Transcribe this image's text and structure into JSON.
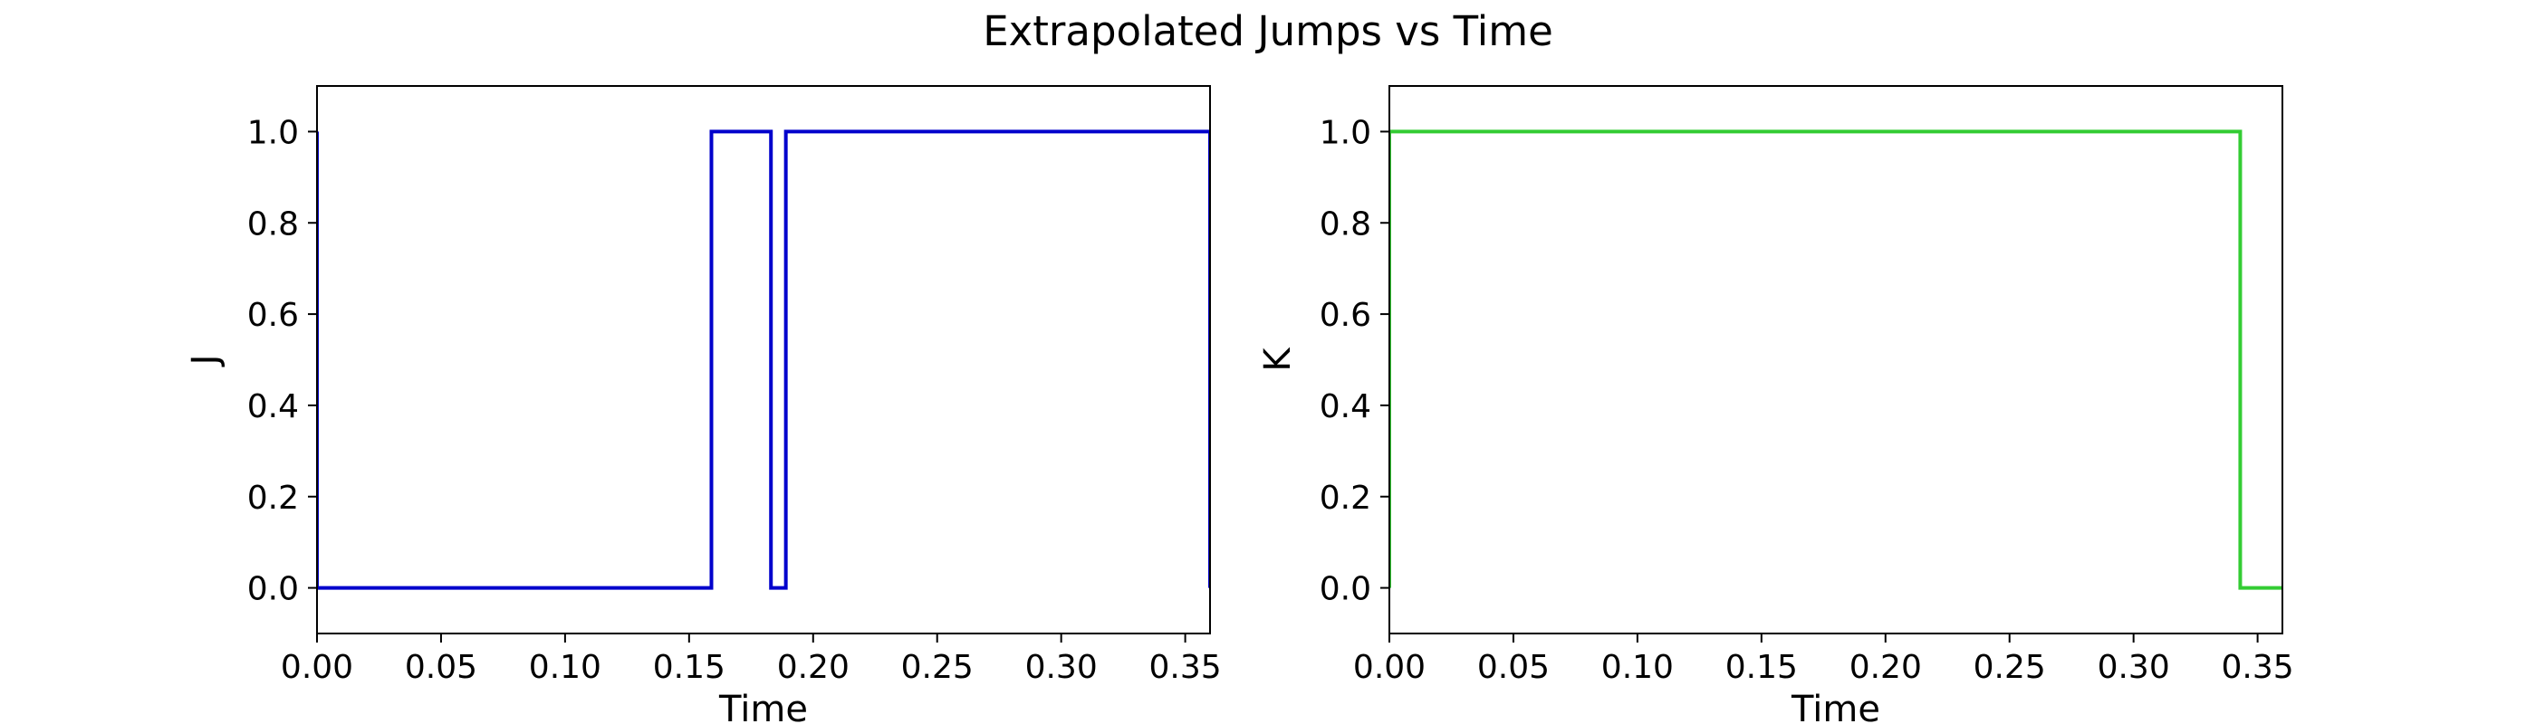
{
  "figure": {
    "suptitle": "Extrapolated Jumps vs Time"
  },
  "chart_data": [
    {
      "type": "line",
      "step": "post",
      "xlabel": "Time",
      "ylabel": "J",
      "xlim": [
        0.0,
        0.36
      ],
      "ylim": [
        -0.1,
        1.1
      ],
      "xticks": [
        "0.00",
        "0.05",
        "0.10",
        "0.15",
        "0.20",
        "0.25",
        "0.30",
        "0.35"
      ],
      "yticks": [
        "0.0",
        "0.2",
        "0.4",
        "0.6",
        "0.8",
        "1.0"
      ],
      "grid": false,
      "series": [
        {
          "color": "#0000cc",
          "x": [
            0.0,
            0.0,
            0.159,
            0.183,
            0.189,
            0.36,
            0.36
          ],
          "y": [
            1.0,
            0.0,
            1.0,
            0.0,
            1.0,
            1.0,
            0.0
          ]
        }
      ]
    },
    {
      "type": "line",
      "step": "post",
      "xlabel": "Time",
      "ylabel": "K",
      "xlim": [
        0.0,
        0.36
      ],
      "ylim": [
        -0.1,
        1.1
      ],
      "xticks": [
        "0.00",
        "0.05",
        "0.10",
        "0.15",
        "0.20",
        "0.25",
        "0.30",
        "0.35"
      ],
      "yticks": [
        "0.0",
        "0.2",
        "0.4",
        "0.6",
        "0.8",
        "1.0"
      ],
      "grid": false,
      "series": [
        {
          "color": "#33cc33",
          "x": [
            0.0,
            0.0,
            0.343,
            0.36
          ],
          "y": [
            0.0,
            1.0,
            0.0,
            0.0
          ]
        }
      ]
    }
  ]
}
